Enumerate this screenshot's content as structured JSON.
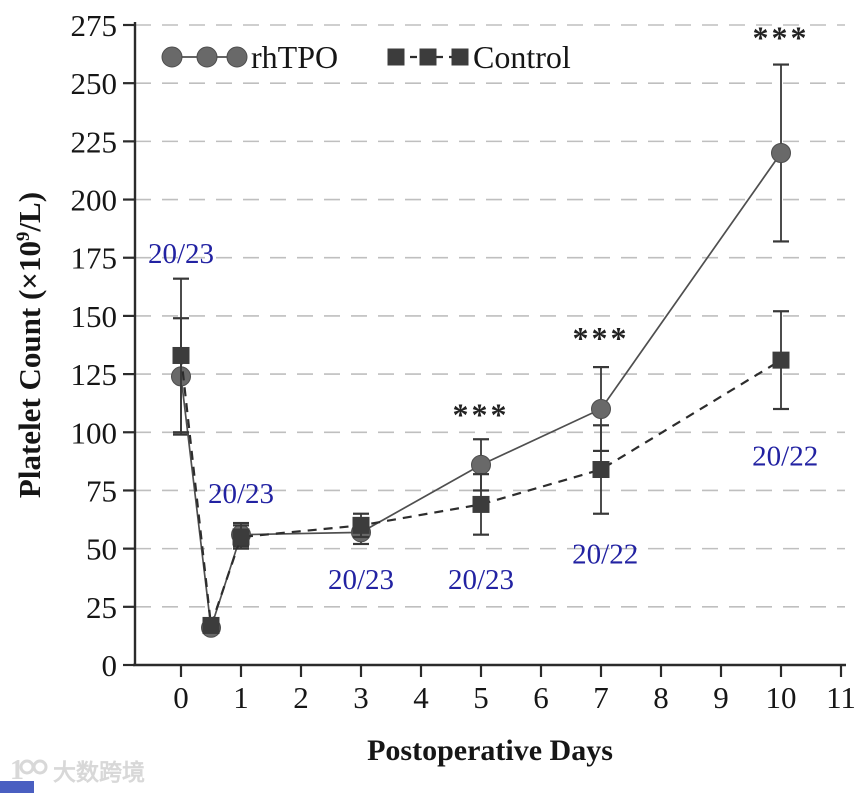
{
  "chart_data": {
    "type": "line",
    "title": "",
    "xlabel": "Postoperative Days",
    "ylabel": "Platelet Count (×10⁹/L)",
    "x_ticks": [
      0,
      1,
      2,
      3,
      4,
      5,
      6,
      7,
      8,
      9,
      10,
      11
    ],
    "y_ticks": [
      0,
      25,
      50,
      75,
      100,
      125,
      150,
      175,
      200,
      225,
      250,
      275
    ],
    "xlim": [
      -0.77,
      11.07
    ],
    "ylim": [
      0,
      275
    ],
    "grid": "horizontal-dashed",
    "legend_position": "top-inside",
    "series": [
      {
        "name": "rhTPO",
        "marker": "circle",
        "line_style": "solid",
        "marker_color": "#696969",
        "line_color": "#4f4f4f",
        "x": [
          0,
          0.5,
          1,
          3,
          5,
          7,
          10
        ],
        "y": [
          124,
          16,
          56,
          57,
          86,
          110,
          220
        ],
        "yerr": [
          25,
          0,
          5,
          5,
          11,
          18,
          38
        ]
      },
      {
        "name": "Control",
        "marker": "square",
        "line_style": "dashed",
        "marker_color": "#3c3c3c",
        "line_color": "#2d2d2d",
        "x": [
          0,
          0.5,
          1,
          3,
          5,
          7,
          10
        ],
        "y": [
          133,
          17,
          55,
          60,
          69,
          84,
          131
        ],
        "yerr": [
          33,
          0,
          5,
          5,
          13,
          19,
          21
        ]
      }
    ],
    "annotations": [
      {
        "text": "20/23",
        "x": 0,
        "y": 177
      },
      {
        "text": "20/23",
        "x": 1,
        "y": 74
      },
      {
        "text": "20/23",
        "x": 3,
        "y": 37
      },
      {
        "text": "20/23",
        "x": 5,
        "y": 37
      },
      {
        "text": "20/22",
        "x": 7.07,
        "y": 48
      },
      {
        "text": "20/22",
        "x": 10.07,
        "y": 90
      }
    ],
    "annotation_color": "#2222a2",
    "significance": [
      {
        "text": "***",
        "x": 5,
        "y": 108
      },
      {
        "text": "***",
        "x": 7,
        "y": 141
      },
      {
        "text": "***",
        "x": 10,
        "y": 270
      }
    ]
  },
  "legend": {
    "items": [
      {
        "label": "rhTPO"
      },
      {
        "label": "Control"
      }
    ]
  },
  "watermark": {
    "logo": "1oo",
    "text": "大数跨境",
    "text_color": "#d8d8d8",
    "badge_color": "#4a5fc1"
  }
}
